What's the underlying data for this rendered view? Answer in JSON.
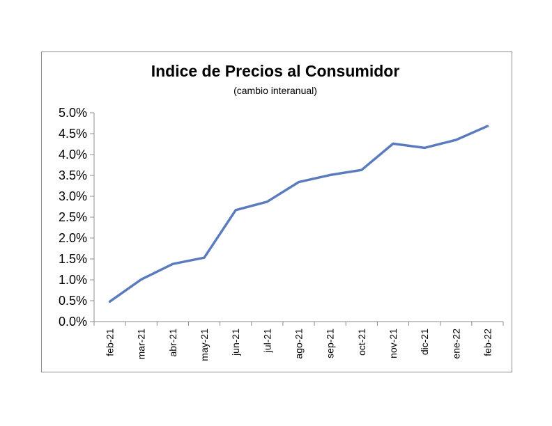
{
  "chart_data": {
    "type": "line",
    "title": "Indice de Precios al Consumidor",
    "subtitle": "(cambio interanual)",
    "xlabel": "",
    "ylabel": "",
    "categories": [
      "feb-21",
      "mar-21",
      "abr-21",
      "may-21",
      "jun-21",
      "jul-21",
      "ago-21",
      "sep-21",
      "oct-21",
      "nov-21",
      "dic-21",
      "ene-22",
      "feb-22"
    ],
    "series": [
      {
        "values": [
          0.48,
          1.01,
          1.38,
          1.53,
          2.67,
          2.87,
          3.34,
          3.51,
          3.63,
          4.26,
          4.16,
          4.35,
          4.68
        ],
        "color": "#5b7bbf"
      }
    ],
    "ylim": [
      0,
      5
    ],
    "yticks": [
      "0.0%",
      "0.5%",
      "1.0%",
      "1.5%",
      "2.0%",
      "2.5%",
      "3.0%",
      "3.5%",
      "4.0%",
      "4.5%",
      "5.0%"
    ],
    "grid": false,
    "legend": "none"
  }
}
